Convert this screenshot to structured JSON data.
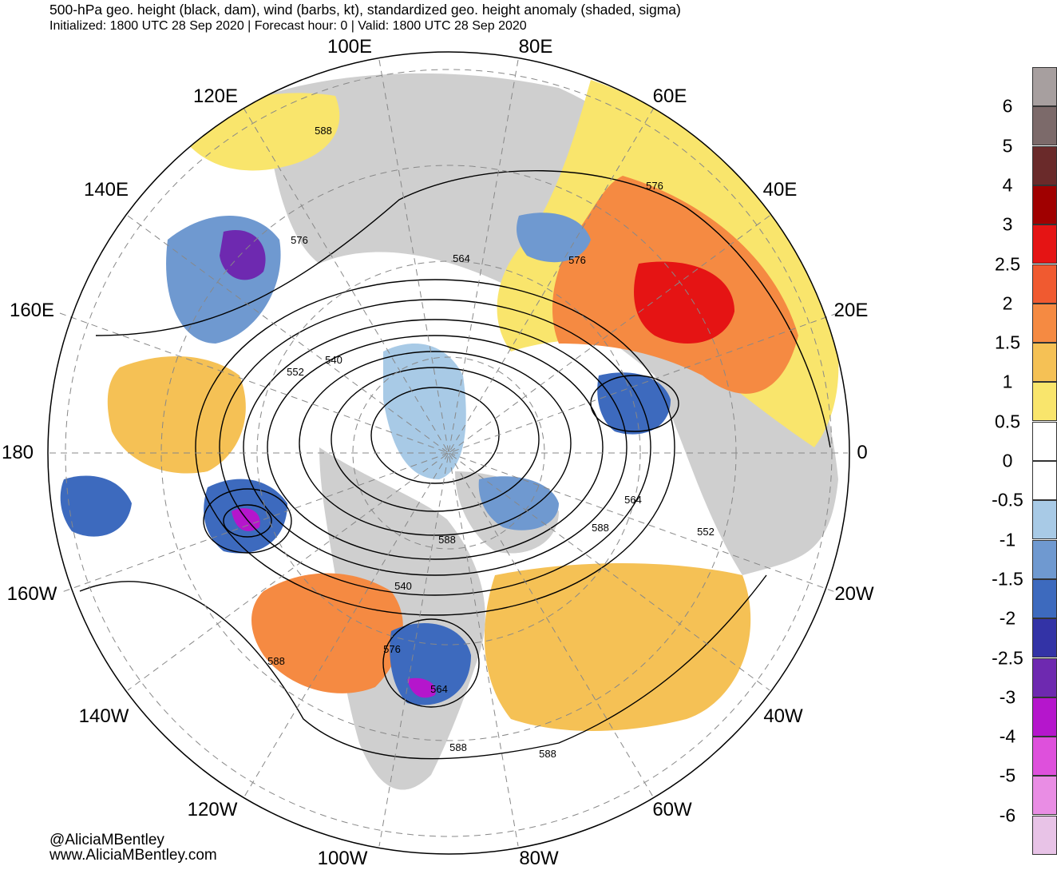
{
  "title": "500-hPa geo. height (black, dam), wind (barbs, kt), standardized geo. height anomaly (shaded, sigma)",
  "subtitle": "Initialized: 1800 UTC 28 Sep 2020 | Forecast hour: 0 | Valid: 1800 UTC 28 Sep 2020",
  "map": {
    "projection": "north-polar-stereographic",
    "longitude_labels": [
      "100E",
      "80E",
      "120E",
      "60E",
      "140E",
      "40E",
      "160E",
      "20E",
      "180",
      "0",
      "160W",
      "20W",
      "140W",
      "40W",
      "120W",
      "60W",
      "100W",
      "80W"
    ],
    "contour_labels": [
      "588",
      "576",
      "564",
      "576",
      "552",
      "540",
      "576",
      "564",
      "588",
      "552",
      "540",
      "588",
      "576",
      "564",
      "588",
      "588",
      "588"
    ]
  },
  "colorbar": {
    "tick_labels": [
      "6",
      "5",
      "4",
      "3",
      "2.5",
      "2",
      "1.5",
      "1",
      "0.5",
      "0",
      "-0.5",
      "-1",
      "-1.5",
      "-2",
      "-2.5",
      "-3",
      "-4",
      "-5",
      "-6"
    ],
    "colors": [
      "#a79f9f",
      "#7c6a6a",
      "#6a2a2a",
      "#a00000",
      "#e51414",
      "#f05a30",
      "#f58a42",
      "#f5c155",
      "#f9e56c",
      "#ffffff",
      "#ffffff",
      "#a8cae6",
      "#6f99d0",
      "#3d6abe",
      "#3333a6",
      "#6e29b0",
      "#b516cc",
      "#de50dc",
      "#e98de4",
      "#e8c3e7"
    ]
  },
  "credits": {
    "handle": "@AliciaMBentley",
    "site": "www.AliciaMBentley.com"
  }
}
